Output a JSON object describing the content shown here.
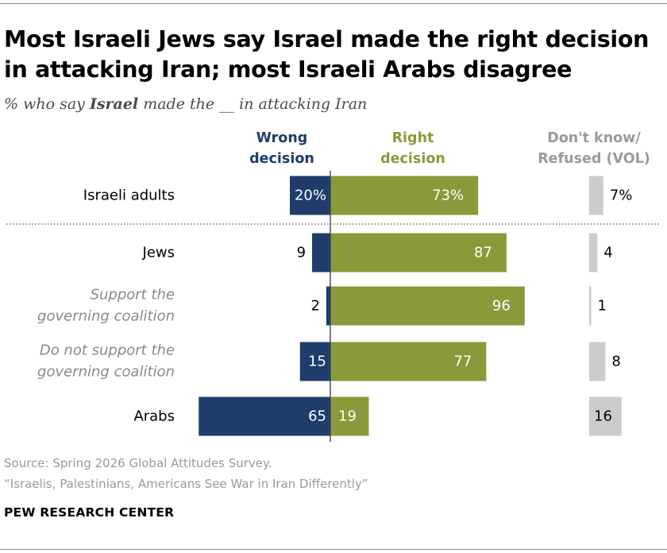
{
  "title": "Most Israeli Jews say Israel made the right decision in attacking Iran; most Israeli Arabs disagree",
  "subtitle": {
    "prefix": "% who say ",
    "emphasis": "Israel",
    "suffix": " made the __ in attacking Iran"
  },
  "colors": {
    "wrong": "#1f3d6b",
    "right": "#8a9a3b",
    "dk": "#cccccc",
    "wrong_header": "#1f3d6b",
    "right_header": "#8a9a3b",
    "dk_header": "#9a9a9a",
    "sub_label": "#8a8a8a"
  },
  "chart_data": {
    "type": "bar",
    "layout": "diverging-stacked",
    "series": [
      {
        "name": "Wrong decision",
        "values": [
          20,
          9,
          2,
          15,
          65
        ]
      },
      {
        "name": "Right decision",
        "values": [
          73,
          87,
          96,
          77,
          19
        ]
      },
      {
        "name": "Don't know/ Refused (VOL)",
        "values": [
          7,
          4,
          1,
          8,
          16
        ]
      }
    ],
    "rows": [
      {
        "label": "Israeli adults",
        "wrong": 20,
        "right": 73,
        "dk": 7,
        "wrong_text": "20%",
        "right_text": "73%",
        "dk_text": "7%",
        "sub": false
      },
      {
        "label": "Jews",
        "wrong": 9,
        "right": 87,
        "dk": 4,
        "wrong_text": "9",
        "right_text": "87",
        "dk_text": "4",
        "sub": false
      },
      {
        "label": "Support the governing coalition",
        "label_lines": [
          "Support the",
          "governing coalition"
        ],
        "wrong": 2,
        "right": 96,
        "dk": 1,
        "wrong_text": "2",
        "right_text": "96",
        "dk_text": "1",
        "sub": true
      },
      {
        "label": "Do not support the governing coalition",
        "label_lines": [
          "Do not support the",
          "governing coalition"
        ],
        "wrong": 15,
        "right": 77,
        "dk": 8,
        "wrong_text": "15",
        "right_text": "77",
        "dk_text": "8",
        "sub": true
      },
      {
        "label": "Arabs",
        "wrong": 65,
        "right": 19,
        "dk": 16,
        "wrong_text": "65",
        "right_text": "19",
        "dk_text": "16",
        "sub": false
      }
    ]
  },
  "headers": {
    "wrong": [
      "Wrong",
      "decision"
    ],
    "right": [
      "Right",
      "decision"
    ],
    "dk": [
      "Don't know/",
      "Refused (VOL)"
    ]
  },
  "footer": {
    "source": "Source: Spring 2026 Global Attitudes Survey.",
    "report": "“Israelis, Palestinians, Americans See War in Iran Differently”",
    "brand": "PEW RESEARCH CENTER"
  }
}
